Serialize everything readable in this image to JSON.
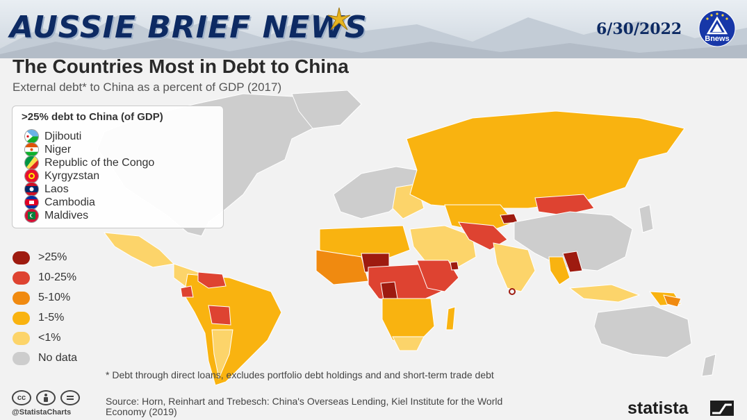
{
  "header": {
    "brand": "AUSSIE BRIEF NEWS",
    "date": "6/30/2022",
    "logo_text": "Bnews",
    "star_icon": "gold-star-icon"
  },
  "title": "The Countries Most in Debt to China",
  "subtitle": "External debt* to China as a percent of GDP (2017)",
  "legend_countries": {
    "title": ">25% debt to China (of GDP)",
    "items": [
      {
        "name": "Djibouti",
        "icon": "djibouti-flag-icon"
      },
      {
        "name": "Niger",
        "icon": "niger-flag-icon"
      },
      {
        "name": "Republic of the Congo",
        "icon": "congo-flag-icon"
      },
      {
        "name": "Kyrgyzstan",
        "icon": "kyrgyzstan-flag-icon"
      },
      {
        "name": "Laos",
        "icon": "laos-flag-icon"
      },
      {
        "name": "Cambodia",
        "icon": "cambodia-flag-icon"
      },
      {
        "name": "Maldives",
        "icon": "maldives-flag-icon"
      }
    ]
  },
  "categories": [
    {
      "label": ">25%",
      "color": "#9e1b10"
    },
    {
      "label": "10-25%",
      "color": "#de4331"
    },
    {
      "label": "5-10%",
      "color": "#f08a10"
    },
    {
      "label": "1-5%",
      "color": "#f9b310"
    },
    {
      "label": "<1%",
      "color": "#fcd46a"
    },
    {
      "label": "No data",
      "color": "#cdcdcd"
    }
  ],
  "footnote": "* Debt through direct loans, excludes portfolio debt holdings and and short-term trade debt",
  "source": "Source: Horn, Reinhart and Trebesch: China's Overseas Lending, Kiel Institute for the World Economy (2019)",
  "handle": "@StatistaCharts",
  "license_icons": [
    "cc",
    "by",
    "nd"
  ],
  "brand_footer": "statista"
}
